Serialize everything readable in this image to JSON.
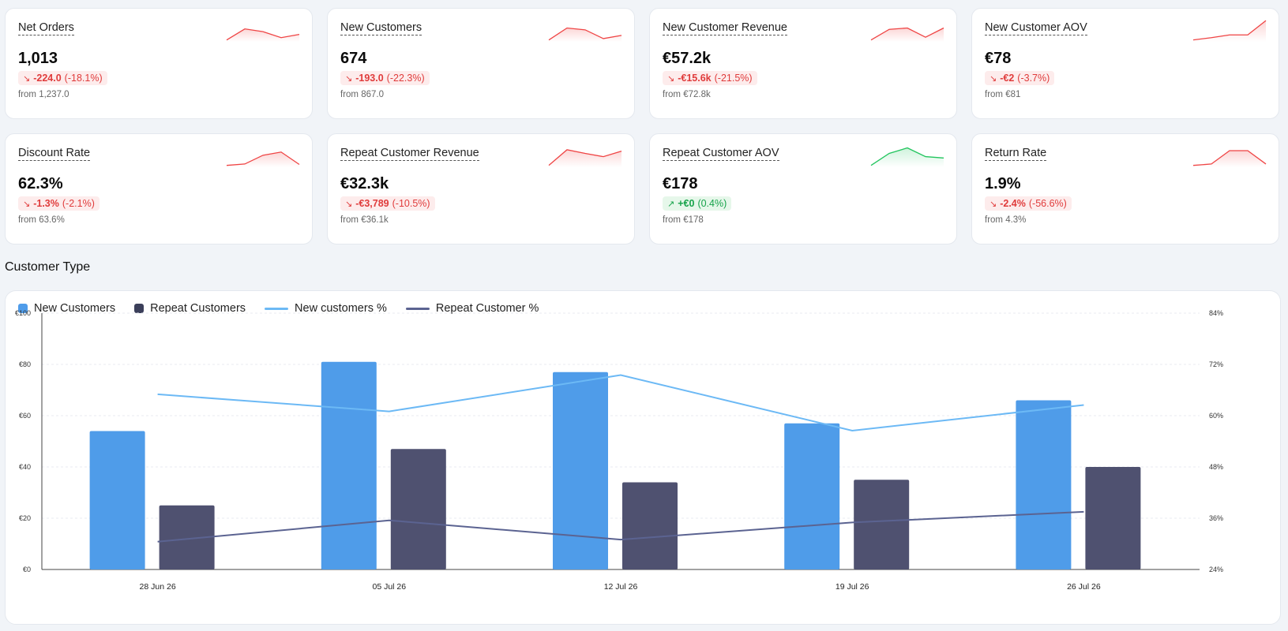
{
  "kpis": [
    {
      "title": "Net Orders",
      "value": "1,013",
      "delta_abs": "-224.0",
      "delta_pct": "(-18.1%)",
      "direction": "down",
      "from": "from 1,237.0",
      "spark": [
        1,
        3.4,
        2.8,
        1.5,
        2.2
      ],
      "color": "#ef4444"
    },
    {
      "title": "New Customers",
      "value": "674",
      "delta_abs": "-193.0",
      "delta_pct": "(-22.3%)",
      "direction": "down",
      "from": "from 867.0",
      "spark": [
        1,
        3.6,
        3.2,
        1.3,
        2.0
      ],
      "color": "#ef4444"
    },
    {
      "title": "New Customer Revenue",
      "value": "€57.2k",
      "delta_abs": "-€15.6k",
      "delta_pct": "(-21.5%)",
      "direction": "down",
      "from": "from €72.8k",
      "spark": [
        1,
        3.3,
        3.6,
        1.6,
        3.6
      ],
      "color": "#ef4444"
    },
    {
      "title": "New Customer AOV",
      "value": "€78",
      "delta_abs": "-€2",
      "delta_pct": "(-3.7%)",
      "direction": "down",
      "from": "from €81",
      "spark": [
        1,
        1.5,
        2.1,
        2.1,
        5.2
      ],
      "color": "#ef4444"
    },
    {
      "title": "Discount Rate",
      "value": "62.3%",
      "delta_abs": "-1.3%",
      "delta_pct": "(-2.1%)",
      "direction": "down",
      "from": "from 63.6%",
      "spark": [
        1,
        1.3,
        3.2,
        3.9,
        1.2
      ],
      "color": "#ef4444"
    },
    {
      "title": "Repeat Customer Revenue",
      "value": "€32.3k",
      "delta_abs": "-€3,789",
      "delta_pct": "(-10.5%)",
      "direction": "down",
      "from": "from €36.1k",
      "spark": [
        1,
        4.4,
        3.6,
        2.9,
        4.1
      ],
      "color": "#ef4444"
    },
    {
      "title": "Repeat Customer AOV",
      "value": "€178",
      "delta_abs": "+€0",
      "delta_pct": "(0.4%)",
      "direction": "up",
      "from": "from €178",
      "spark": [
        1,
        3.6,
        4.8,
        2.9,
        2.6
      ],
      "color": "#22c55e"
    },
    {
      "title": "Return Rate",
      "value": "1.9%",
      "delta_abs": "-2.4%",
      "delta_pct": "(-56.6%)",
      "direction": "down",
      "from": "from 4.3%",
      "spark": [
        1,
        1.3,
        4.2,
        4.2,
        1.3
      ],
      "color": "#ef4444"
    }
  ],
  "icons": {
    "down": "↘",
    "up": "↗"
  },
  "section_title": "Customer Type",
  "legend": [
    {
      "label": "New Customers",
      "kind": "square",
      "color": "#4f9cea"
    },
    {
      "label": "Repeat Customers",
      "kind": "square",
      "color": "#3b3f5a"
    },
    {
      "label": "New customers %",
      "kind": "line",
      "color": "#6cb9f5"
    },
    {
      "label": "Repeat Customer %",
      "kind": "line",
      "color": "#5b6391"
    }
  ],
  "chart_data": {
    "type": "bar",
    "categories": [
      "28 Jun 26",
      "05 Jul 26",
      "12 Jul 26",
      "19 Jul 26",
      "26 Jul 26"
    ],
    "series": [
      {
        "name": "New Customers",
        "type": "bar",
        "axis": "left",
        "color": "#4f9ce9",
        "values": [
          54,
          81,
          77,
          57,
          66
        ]
      },
      {
        "name": "Repeat Customers",
        "type": "bar",
        "axis": "left",
        "color": "#4f5170",
        "values": [
          25,
          47,
          34,
          35,
          40
        ]
      },
      {
        "name": "New customers %",
        "type": "line",
        "axis": "right",
        "color": "#6cb9f5",
        "values": [
          65,
          61,
          69.5,
          56.5,
          62.5
        ]
      },
      {
        "name": "Repeat Customer %",
        "type": "line",
        "axis": "right",
        "color": "#5b6391",
        "values": [
          30.5,
          35.5,
          31,
          35,
          37.5
        ]
      }
    ],
    "y_left": {
      "min": 0,
      "max": 100,
      "ticks": [
        0,
        20,
        40,
        60,
        80,
        100
      ],
      "tick_labels": [
        "€0",
        "€20",
        "€40",
        "€60",
        "€80",
        "€100"
      ]
    },
    "y_right": {
      "min": 24,
      "max": 84,
      "ticks": [
        24,
        36,
        48,
        60,
        72,
        84
      ],
      "tick_labels": [
        "24%",
        "36%",
        "48%",
        "60%",
        "72%",
        "84%"
      ]
    },
    "grid": true,
    "legend_position": "top-left"
  }
}
